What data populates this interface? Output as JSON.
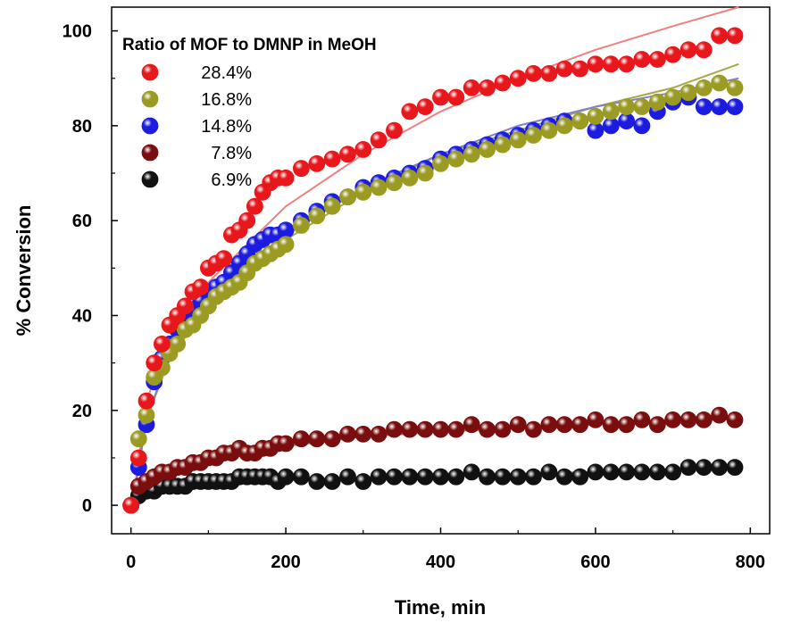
{
  "chart_data": {
    "type": "scatter",
    "title": "",
    "xlabel": "Time, min",
    "ylabel": "% Conversion",
    "xlim": [
      -25,
      825
    ],
    "ylim": [
      -6,
      105
    ],
    "xticks": [
      0,
      200,
      400,
      600,
      800
    ],
    "yticks": [
      0,
      20,
      40,
      60,
      80,
      100
    ],
    "grid": false,
    "legend": {
      "title": "Ratio of MOF to DMNP in MeOH",
      "position": "top-left"
    },
    "series": [
      {
        "name": "28.4%",
        "color": "#e8171c",
        "fit_color": "#f08080",
        "x": [
          0,
          10,
          20,
          30,
          40,
          50,
          60,
          70,
          80,
          90,
          100,
          110,
          120,
          130,
          140,
          150,
          160,
          170,
          180,
          190,
          200,
          220,
          240,
          260,
          280,
          300,
          320,
          340,
          360,
          380,
          400,
          420,
          440,
          460,
          480,
          500,
          520,
          540,
          560,
          580,
          600,
          620,
          640,
          660,
          680,
          700,
          720,
          740,
          760,
          780
        ],
        "y": [
          0,
          10,
          22,
          30,
          34,
          38,
          40,
          42,
          45,
          46,
          50,
          51,
          52,
          57,
          58,
          60,
          63,
          66,
          68,
          69,
          69,
          71,
          72,
          73,
          74,
          75,
          77,
          79,
          83,
          84,
          86,
          86,
          88,
          88,
          89,
          90,
          91,
          91,
          92,
          92,
          93,
          93,
          93,
          94,
          94,
          95,
          96,
          96,
          99,
          99
        ],
        "fit": [
          [
            2,
            0
          ],
          [
            20,
            22
          ],
          [
            50,
            35
          ],
          [
            100,
            47
          ],
          [
            200,
            63
          ],
          [
            300,
            74
          ],
          [
            400,
            83
          ],
          [
            500,
            90
          ],
          [
            600,
            96
          ],
          [
            700,
            101
          ],
          [
            785,
            105
          ]
        ]
      },
      {
        "name": "16.8%",
        "color": "#9b9b23",
        "fit_color": "#a8a848",
        "x": [
          0,
          10,
          20,
          30,
          40,
          50,
          60,
          70,
          80,
          90,
          100,
          110,
          120,
          130,
          140,
          150,
          160,
          170,
          180,
          190,
          200,
          220,
          240,
          260,
          280,
          300,
          320,
          340,
          360,
          380,
          400,
          420,
          440,
          460,
          480,
          500,
          520,
          540,
          560,
          580,
          600,
          620,
          640,
          660,
          680,
          700,
          720,
          740,
          760,
          780
        ],
        "y": [
          0,
          14,
          19,
          27,
          29,
          32,
          34,
          37,
          38,
          40,
          42,
          44,
          45,
          46,
          47,
          49,
          51,
          52,
          53,
          54,
          55,
          59,
          61,
          63,
          65,
          66,
          67,
          68,
          69,
          70,
          72,
          73,
          74,
          75,
          76,
          77,
          78,
          79,
          80,
          81,
          82,
          83,
          84,
          84,
          85,
          86,
          87,
          88,
          89,
          88
        ],
        "fit": [
          [
            2,
            0
          ],
          [
            20,
            18
          ],
          [
            50,
            31
          ],
          [
            100,
            42
          ],
          [
            200,
            56
          ],
          [
            300,
            66
          ],
          [
            400,
            74
          ],
          [
            500,
            79
          ],
          [
            600,
            84
          ],
          [
            700,
            88
          ],
          [
            785,
            93
          ]
        ]
      },
      {
        "name": "14.8%",
        "color": "#1c1ce0",
        "fit_color": "#8080c8",
        "x": [
          0,
          10,
          20,
          30,
          40,
          50,
          60,
          70,
          80,
          90,
          100,
          110,
          120,
          130,
          140,
          150,
          160,
          170,
          180,
          190,
          200,
          220,
          240,
          260,
          280,
          300,
          320,
          340,
          360,
          380,
          400,
          420,
          440,
          460,
          480,
          500,
          520,
          540,
          560,
          580,
          600,
          620,
          640,
          660,
          680,
          700,
          720,
          740,
          760,
          780
        ],
        "y": [
          0,
          8,
          17,
          26,
          31,
          34,
          37,
          40,
          41,
          43,
          45,
          46,
          47,
          49,
          51,
          53,
          55,
          56,
          57,
          57,
          58,
          60,
          62,
          64,
          65,
          67,
          68,
          69,
          70,
          71,
          73,
          74,
          75,
          76,
          77,
          78,
          79,
          80,
          81,
          81,
          79,
          80,
          81,
          80,
          83,
          85,
          86,
          84,
          84,
          84
        ],
        "fit": [
          [
            2,
            0
          ],
          [
            20,
            18
          ],
          [
            50,
            32
          ],
          [
            100,
            43
          ],
          [
            200,
            57
          ],
          [
            300,
            67
          ],
          [
            400,
            74
          ],
          [
            500,
            80
          ],
          [
            600,
            84
          ],
          [
            700,
            87
          ],
          [
            785,
            90
          ]
        ]
      },
      {
        "name": "7.8%",
        "color": "#7a0e0e",
        "fit_color": "#a06060",
        "x": [
          0,
          10,
          20,
          30,
          40,
          50,
          60,
          70,
          80,
          90,
          100,
          110,
          120,
          130,
          140,
          150,
          160,
          170,
          180,
          190,
          200,
          220,
          240,
          260,
          280,
          300,
          320,
          340,
          360,
          380,
          400,
          420,
          440,
          460,
          480,
          500,
          520,
          540,
          560,
          580,
          600,
          620,
          640,
          660,
          680,
          700,
          720,
          740,
          760,
          780
        ],
        "y": [
          0,
          4,
          5,
          6,
          7,
          7,
          8,
          8,
          9,
          9,
          10,
          10,
          11,
          11,
          12,
          11,
          11,
          12,
          12,
          13,
          13,
          14,
          14,
          14,
          15,
          15,
          15,
          16,
          16,
          16,
          16,
          16,
          17,
          16,
          16,
          17,
          16,
          17,
          17,
          17,
          18,
          17,
          17,
          18,
          17,
          18,
          18,
          18,
          19,
          18
        ],
        "fit": [
          [
            2,
            0
          ],
          [
            20,
            5
          ],
          [
            50,
            7.5
          ],
          [
            100,
            9.5
          ],
          [
            200,
            12.5
          ],
          [
            300,
            14.5
          ],
          [
            400,
            15.5
          ],
          [
            500,
            16.3
          ],
          [
            600,
            17
          ],
          [
            700,
            17.7
          ],
          [
            785,
            18.2
          ]
        ]
      },
      {
        "name": "6.9%",
        "color": "#111111",
        "fit_color": "#606060",
        "x": [
          0,
          10,
          20,
          30,
          40,
          50,
          60,
          70,
          80,
          90,
          100,
          110,
          120,
          130,
          140,
          150,
          160,
          170,
          180,
          190,
          200,
          220,
          240,
          260,
          280,
          300,
          320,
          340,
          360,
          380,
          400,
          420,
          440,
          460,
          480,
          500,
          520,
          540,
          560,
          580,
          600,
          620,
          640,
          660,
          680,
          700,
          720,
          740,
          760,
          780
        ],
        "y": [
          0,
          2,
          3,
          3,
          4,
          4,
          4,
          4,
          5,
          5,
          5,
          5,
          5,
          5,
          6,
          6,
          6,
          6,
          6,
          5,
          6,
          6,
          5,
          5,
          6,
          5,
          6,
          6,
          6,
          6,
          6,
          6,
          7,
          6,
          6,
          6,
          6,
          7,
          6,
          6,
          7,
          7,
          7,
          7,
          7,
          7,
          8,
          8,
          8,
          8
        ],
        "fit": [
          [
            2,
            0
          ],
          [
            20,
            2.5
          ],
          [
            50,
            3.5
          ],
          [
            100,
            4.5
          ],
          [
            200,
            5.3
          ],
          [
            300,
            5.8
          ],
          [
            400,
            6.2
          ],
          [
            500,
            6.6
          ],
          [
            600,
            7
          ],
          [
            700,
            7.4
          ],
          [
            785,
            7.8
          ]
        ]
      }
    ]
  }
}
